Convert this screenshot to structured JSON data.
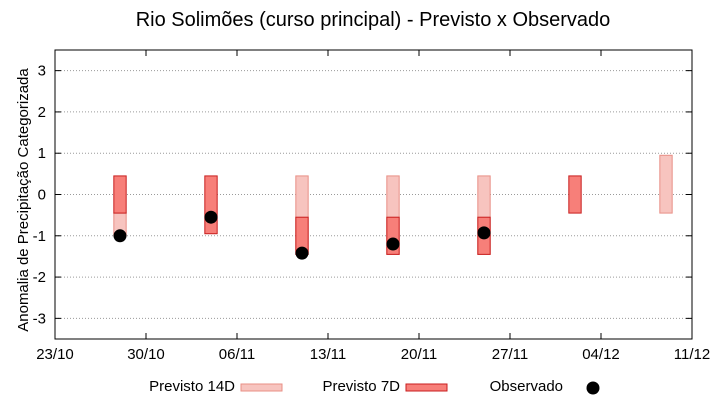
{
  "chart_data": {
    "type": "range-bar",
    "title": "Rio Solimões (curso principal) - Previsto x Observado",
    "ylabel": "Anomalia de Precipitação Categorizada",
    "xlabel": "",
    "ylim": [
      -3.5,
      3.5
    ],
    "yticks": [
      3,
      2,
      1,
      0,
      -1,
      -2,
      -3
    ],
    "xlim": [
      "2012-10-23",
      "2012-12-11"
    ],
    "xticks": [
      {
        "date": "2012-10-23",
        "label": "23/10"
      },
      {
        "date": "2012-10-30",
        "label": "30/10"
      },
      {
        "date": "2012-11-06",
        "label": "06/11"
      },
      {
        "date": "2012-11-13",
        "label": "13/11"
      },
      {
        "date": "2012-11-20",
        "label": "20/11"
      },
      {
        "date": "2012-11-27",
        "label": "27/11"
      },
      {
        "date": "2012-12-04",
        "label": "04/12"
      },
      {
        "date": "2012-12-11",
        "label": "11/12"
      }
    ],
    "grid": true,
    "legend_position": "bottom",
    "series": [
      {
        "name": "Previsto 14D",
        "color": "#f7c4bf",
        "edge": "#e88f86",
        "kind": "range",
        "points": [
          {
            "x": "2012-10-28",
            "low": -1.0,
            "high": -0.45
          },
          {
            "x": "2012-11-11",
            "low": -1.45,
            "high": 0.45
          },
          {
            "x": "2012-11-18",
            "low": -1.45,
            "high": 0.45
          },
          {
            "x": "2012-11-25",
            "low": -1.45,
            "high": 0.45
          },
          {
            "x": "2012-12-09",
            "low": -0.45,
            "high": 0.95
          }
        ]
      },
      {
        "name": "Previsto 7D",
        "color": "#f77f79",
        "edge": "#c81e1e",
        "kind": "range",
        "points": [
          {
            "x": "2012-10-28",
            "low": -0.45,
            "high": 0.45
          },
          {
            "x": "2012-11-04",
            "low": -0.95,
            "high": 0.45
          },
          {
            "x": "2012-11-11",
            "low": -1.45,
            "high": -0.55
          },
          {
            "x": "2012-11-18",
            "low": -1.45,
            "high": -0.55
          },
          {
            "x": "2012-11-25",
            "low": -1.45,
            "high": -0.55
          },
          {
            "x": "2012-12-02",
            "low": -0.45,
            "high": 0.45
          }
        ]
      },
      {
        "name": "Observado",
        "color": "#000000",
        "kind": "point",
        "points": [
          {
            "x": "2012-10-28",
            "y": -1.0
          },
          {
            "x": "2012-11-04",
            "y": -0.55
          },
          {
            "x": "2012-11-11",
            "y": -1.42
          },
          {
            "x": "2012-11-18",
            "y": -1.2
          },
          {
            "x": "2012-11-25",
            "y": -0.93
          }
        ]
      }
    ]
  }
}
